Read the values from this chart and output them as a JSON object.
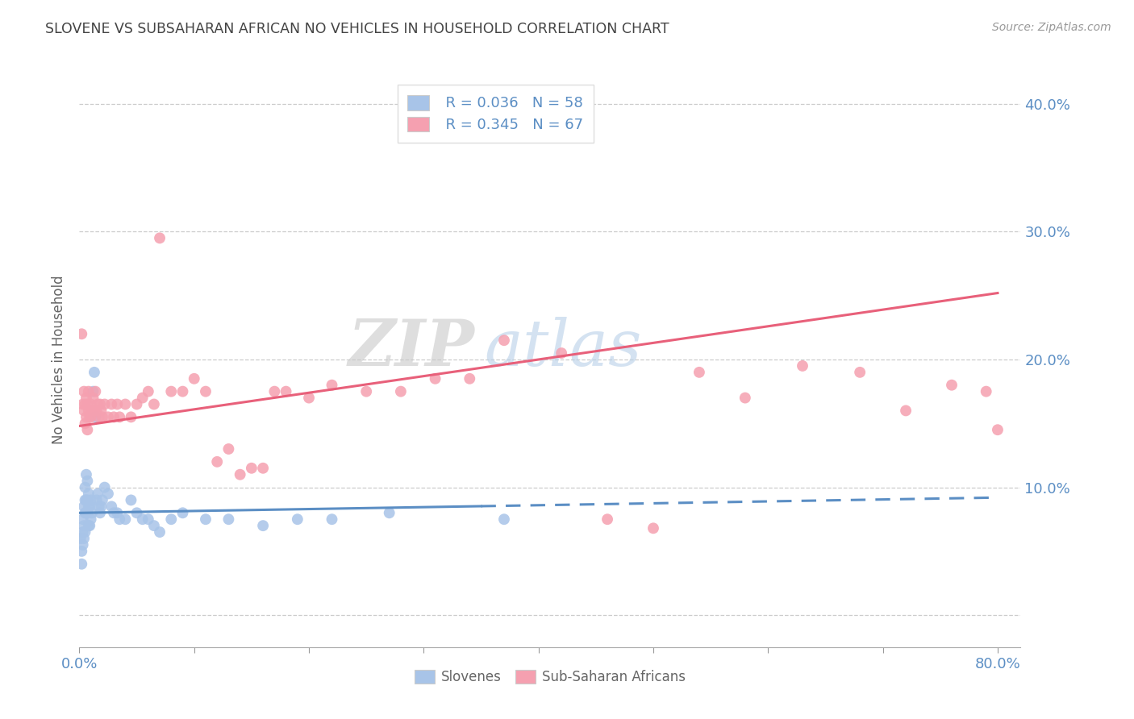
{
  "title": "SLOVENE VS SUBSAHARAN AFRICAN NO VEHICLES IN HOUSEHOLD CORRELATION CHART",
  "source": "Source: ZipAtlas.com",
  "ylabel": "No Vehicles in Household",
  "xlim": [
    0.0,
    0.82
  ],
  "ylim": [
    -0.025,
    0.425
  ],
  "yticks": [
    0.0,
    0.1,
    0.2,
    0.3,
    0.4
  ],
  "ytick_labels": [
    "",
    "10.0%",
    "20.0%",
    "30.0%",
    "40.0%"
  ],
  "xticks": [
    0.0,
    0.1,
    0.2,
    0.3,
    0.4,
    0.5,
    0.6,
    0.7,
    0.8
  ],
  "xtick_labels": [
    "0.0%",
    "",
    "",
    "",
    "",
    "",
    "",
    "",
    "80.0%"
  ],
  "slovene_color": "#a8c4e8",
  "subsaharan_color": "#f5a0b0",
  "slovene_line_color": "#5b8ec4",
  "subsaharan_line_color": "#e8607a",
  "legend_slovene_R": "R = 0.036",
  "legend_slovene_N": "N = 58",
  "legend_subsaharan_R": "R = 0.345",
  "legend_subsaharan_N": "N = 67",
  "watermark_zip": "ZIP",
  "watermark_atlas": "atlas",
  "slovene_x": [
    0.001,
    0.002,
    0.002,
    0.003,
    0.003,
    0.003,
    0.004,
    0.004,
    0.004,
    0.005,
    0.005,
    0.005,
    0.005,
    0.006,
    0.006,
    0.006,
    0.007,
    0.007,
    0.007,
    0.008,
    0.008,
    0.008,
    0.009,
    0.009,
    0.01,
    0.01,
    0.011,
    0.012,
    0.013,
    0.014,
    0.015,
    0.016,
    0.017,
    0.018,
    0.019,
    0.02,
    0.022,
    0.025,
    0.028,
    0.03,
    0.033,
    0.035,
    0.04,
    0.045,
    0.05,
    0.055,
    0.06,
    0.065,
    0.07,
    0.08,
    0.09,
    0.11,
    0.13,
    0.16,
    0.19,
    0.22,
    0.27,
    0.37
  ],
  "slovene_y": [
    0.06,
    0.05,
    0.04,
    0.075,
    0.065,
    0.055,
    0.085,
    0.07,
    0.06,
    0.1,
    0.09,
    0.08,
    0.065,
    0.11,
    0.09,
    0.08,
    0.105,
    0.09,
    0.08,
    0.095,
    0.085,
    0.07,
    0.085,
    0.07,
    0.09,
    0.075,
    0.08,
    0.175,
    0.19,
    0.155,
    0.09,
    0.095,
    0.085,
    0.08,
    0.085,
    0.09,
    0.1,
    0.095,
    0.085,
    0.08,
    0.08,
    0.075,
    0.075,
    0.09,
    0.08,
    0.075,
    0.075,
    0.07,
    0.065,
    0.075,
    0.08,
    0.075,
    0.075,
    0.07,
    0.075,
    0.075,
    0.08,
    0.075
  ],
  "subsaharan_x": [
    0.002,
    0.003,
    0.004,
    0.004,
    0.005,
    0.005,
    0.006,
    0.006,
    0.007,
    0.007,
    0.008,
    0.008,
    0.009,
    0.01,
    0.01,
    0.011,
    0.012,
    0.013,
    0.014,
    0.015,
    0.016,
    0.017,
    0.018,
    0.019,
    0.02,
    0.022,
    0.025,
    0.028,
    0.03,
    0.033,
    0.035,
    0.04,
    0.045,
    0.05,
    0.055,
    0.06,
    0.065,
    0.07,
    0.08,
    0.09,
    0.1,
    0.11,
    0.12,
    0.13,
    0.14,
    0.15,
    0.16,
    0.17,
    0.18,
    0.2,
    0.22,
    0.25,
    0.28,
    0.31,
    0.34,
    0.37,
    0.42,
    0.46,
    0.5,
    0.54,
    0.58,
    0.63,
    0.68,
    0.72,
    0.76,
    0.79,
    0.8
  ],
  "subsaharan_y": [
    0.22,
    0.165,
    0.16,
    0.175,
    0.15,
    0.165,
    0.155,
    0.17,
    0.145,
    0.165,
    0.16,
    0.175,
    0.155,
    0.165,
    0.155,
    0.16,
    0.17,
    0.16,
    0.175,
    0.16,
    0.165,
    0.155,
    0.165,
    0.16,
    0.155,
    0.165,
    0.155,
    0.165,
    0.155,
    0.165,
    0.155,
    0.165,
    0.155,
    0.165,
    0.17,
    0.175,
    0.165,
    0.295,
    0.175,
    0.175,
    0.185,
    0.175,
    0.12,
    0.13,
    0.11,
    0.115,
    0.115,
    0.175,
    0.175,
    0.17,
    0.18,
    0.175,
    0.175,
    0.185,
    0.185,
    0.215,
    0.205,
    0.075,
    0.068,
    0.19,
    0.17,
    0.195,
    0.19,
    0.16,
    0.18,
    0.175,
    0.145
  ],
  "slovene_trend_x": [
    0.0,
    0.8
  ],
  "slovene_trend_y": [
    0.08,
    0.092
  ],
  "subsaharan_trend_x": [
    0.0,
    0.8
  ],
  "subsaharan_trend_y": [
    0.148,
    0.252
  ],
  "background_color": "#ffffff",
  "grid_color": "#cccccc",
  "title_color": "#444444",
  "tick_color": "#5b8ec4"
}
